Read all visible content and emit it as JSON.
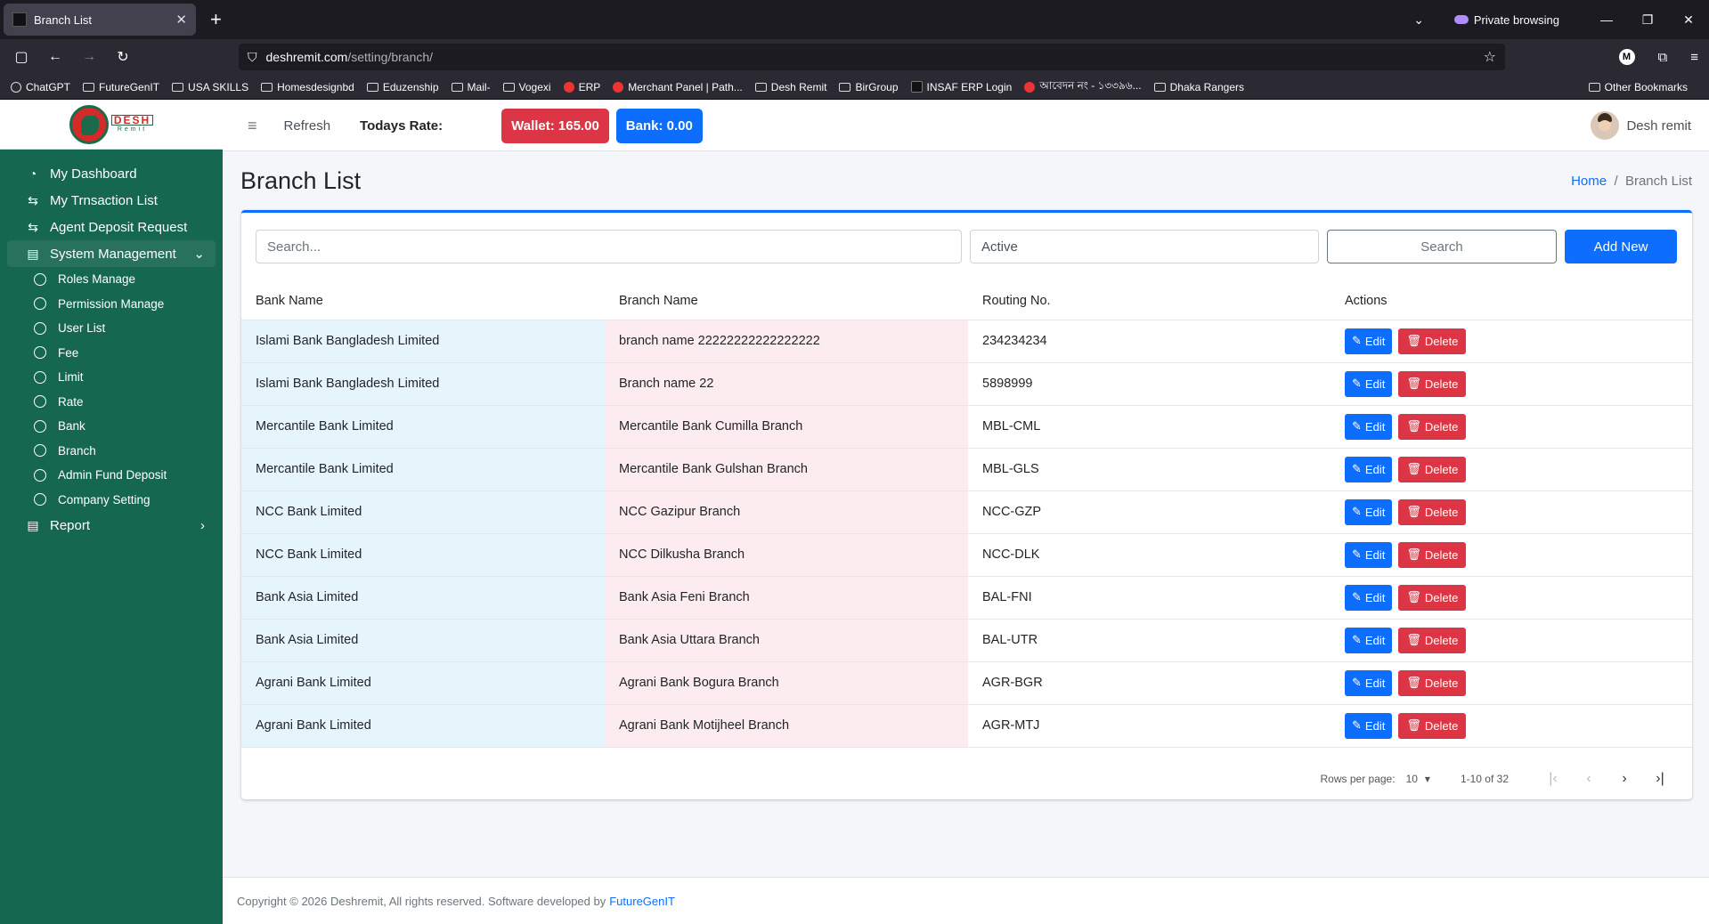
{
  "browser": {
    "tab_title": "Branch List",
    "private_label": "Private browsing",
    "url_host": "deshremit.com",
    "url_path": "/setting/branch/",
    "bookmarks": [
      "ChatGPT",
      "FutureGenIT",
      "USA SKILLS",
      "Homesdesignbd",
      "Eduzenship",
      "Mail-",
      "Vogexi",
      "ERP",
      "Merchant Panel | Path...",
      "Desh Remit",
      "BirGroup",
      "INSAF ERP Login",
      "আবেদন নং - ১৩৩৯৬...",
      "Dhaka Rangers"
    ],
    "other_bookmarks": "Other Bookmarks"
  },
  "logo": {
    "word": "DESH",
    "sub": "Remit"
  },
  "sidebar": {
    "items": [
      {
        "label": "My Dashboard",
        "icon": "dashboard-icon"
      },
      {
        "label": "My Trnsaction List",
        "icon": "exchange-icon"
      },
      {
        "label": "Agent Deposit Request",
        "icon": "exchange-icon"
      },
      {
        "label": "System Management",
        "icon": "clipboard-icon"
      }
    ],
    "sub_items": [
      "Roles Manage",
      "Permission Manage",
      "User List",
      "Fee",
      "Limit",
      "Rate",
      "Bank",
      "Branch",
      "Admin Fund Deposit",
      "Company Setting"
    ],
    "report_label": "Report"
  },
  "topbar": {
    "refresh": "Refresh",
    "todays_rate": "Todays Rate:",
    "wallet": "Wallet: 165.00",
    "bank": "Bank: 0.00",
    "user_name": "Desh remit"
  },
  "page": {
    "title": "Branch List",
    "breadcrumb_home": "Home",
    "breadcrumb_sep": "/",
    "breadcrumb_current": "Branch List"
  },
  "filters": {
    "search_placeholder": "Search...",
    "status_value": "Active",
    "search_button": "Search",
    "add_button": "Add New"
  },
  "table": {
    "headers": [
      "Bank Name",
      "Branch Name",
      "Routing No.",
      "Actions"
    ],
    "edit_label": "Edit",
    "delete_label": "Delete",
    "rows": [
      [
        "Islami Bank Bangladesh Limited",
        "branch name 22222222222222222",
        "234234234"
      ],
      [
        "Islami Bank Bangladesh Limited",
        "Branch name 22",
        "5898999"
      ],
      [
        "Mercantile Bank Limited",
        "Mercantile Bank Cumilla Branch",
        "MBL-CML"
      ],
      [
        "Mercantile Bank Limited",
        "Mercantile Bank Gulshan Branch",
        "MBL-GLS"
      ],
      [
        "NCC Bank Limited",
        "NCC Gazipur Branch",
        "NCC-GZP"
      ],
      [
        "NCC Bank Limited",
        "NCC Dilkusha Branch",
        "NCC-DLK"
      ],
      [
        "Bank Asia Limited",
        "Bank Asia Feni Branch",
        "BAL-FNI"
      ],
      [
        "Bank Asia Limited",
        "Bank Asia Uttara Branch",
        "BAL-UTR"
      ],
      [
        "Agrani Bank Limited",
        "Agrani Bank Bogura Branch",
        "AGR-BGR"
      ],
      [
        "Agrani Bank Limited",
        "Agrani Bank Motijheel Branch",
        "AGR-MTJ"
      ]
    ]
  },
  "pagination": {
    "rows_per_page_label": "Rows per page:",
    "rows_per_page": "10",
    "range": "1-10 of 32"
  },
  "footer": {
    "text": "Copyright © 2026 Deshremit, All rights reserved. Software developed by",
    "link": "FutureGenIT"
  }
}
